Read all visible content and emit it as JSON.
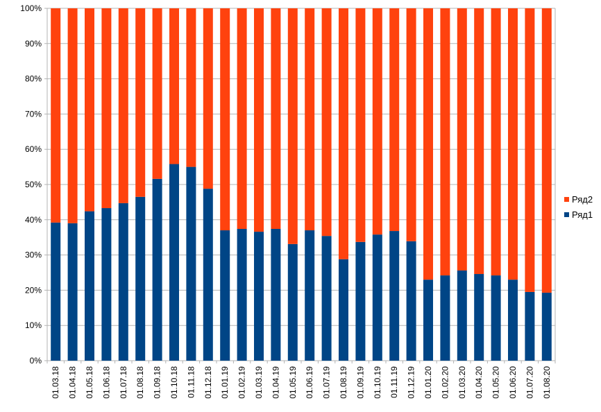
{
  "chart_data": {
    "type": "bar",
    "stacked": "percent",
    "grid": true,
    "legend_position": "right",
    "ylim": [
      0,
      100
    ],
    "y_ticks": [
      "0%",
      "10%",
      "20%",
      "30%",
      "40%",
      "50%",
      "60%",
      "70%",
      "80%",
      "90%",
      "100%"
    ],
    "categories": [
      "01.03.18",
      "01.04.18",
      "01.05.18",
      "01.06.18",
      "01.07.18",
      "01.08.18",
      "01.09.18",
      "01.10.18",
      "01.11.18",
      "01.12.18",
      "01.01.19",
      "01.02.19",
      "01.03.19",
      "01.04.19",
      "01.05.19",
      "01.06.19",
      "01.07.19",
      "01.08.19",
      "01.09.19",
      "01.10.19",
      "01.11.19",
      "01.12.19",
      "01.01.20",
      "01.02.20",
      "01.03.20",
      "01.04.20",
      "01.05.20",
      "01.06.20",
      "01.07.20",
      "01.08.20"
    ],
    "series": [
      {
        "name": "Ряд1",
        "color": "#004586",
        "values": [
          39.2,
          39.0,
          42.4,
          43.3,
          44.7,
          46.5,
          51.6,
          55.8,
          55.0,
          48.8,
          37.0,
          37.4,
          36.6,
          37.4,
          33.1,
          37.0,
          35.4,
          28.8,
          33.7,
          35.8,
          36.8,
          33.9,
          23.0,
          24.2,
          25.6,
          24.6,
          24.2,
          23.0,
          19.5,
          19.3
        ]
      },
      {
        "name": "Ряд2",
        "color": "#ff420e",
        "values": [
          60.8,
          61.0,
          57.6,
          56.7,
          55.3,
          53.5,
          48.4,
          44.2,
          45.0,
          51.2,
          63.0,
          62.6,
          63.4,
          62.6,
          66.9,
          63.0,
          64.6,
          71.2,
          66.3,
          64.2,
          63.2,
          66.1,
          77.0,
          75.8,
          74.4,
          75.4,
          75.8,
          77.0,
          80.5,
          80.7
        ]
      }
    ]
  }
}
